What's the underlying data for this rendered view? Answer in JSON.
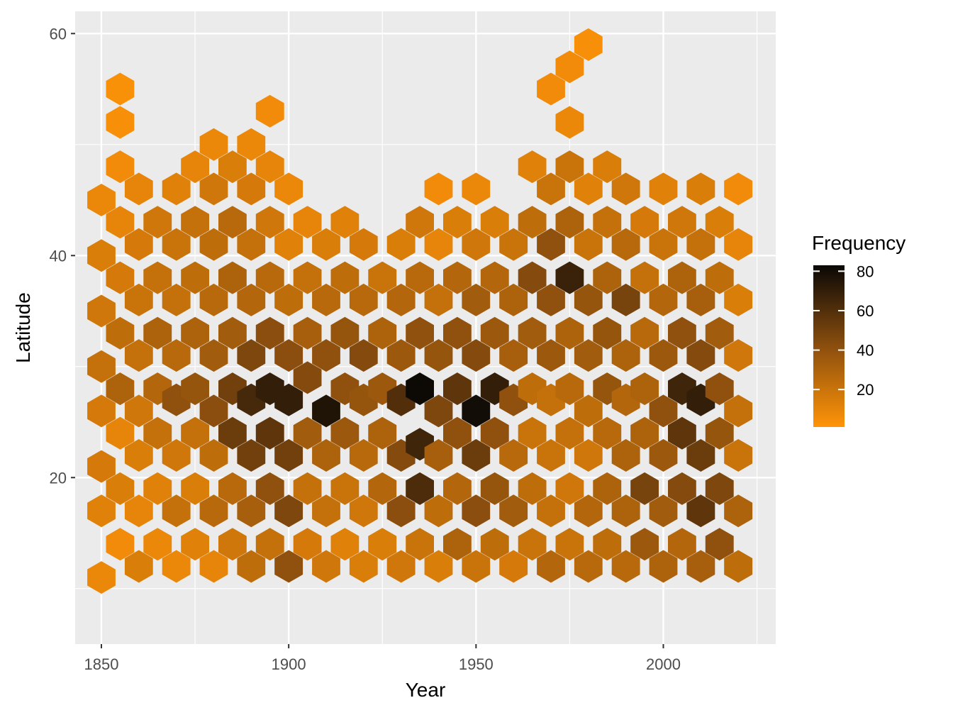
{
  "chart_data": {
    "type": "hexbin",
    "xlabel": "Year",
    "ylabel": "Latitude",
    "xlim": [
      1843,
      2030
    ],
    "ylim": [
      5,
      62
    ],
    "x_ticks": [
      1850,
      1900,
      1950,
      2000
    ],
    "y_ticks": [
      20,
      40,
      60
    ],
    "x_tick_labels": [
      "1850",
      "1900",
      "1950",
      "2000"
    ],
    "y_tick_labels": [
      "20",
      "40",
      "60"
    ],
    "grid": true,
    "legend": {
      "title": "Frequency",
      "position": "right",
      "min": 1,
      "max": 83,
      "breaks": [
        20,
        40,
        60,
        80
      ],
      "labels": [
        "20",
        "40",
        "60",
        "80"
      ],
      "color_low": "#ff9408",
      "color_mid": "#8b4e0e",
      "color_high": "#0a0806"
    },
    "bins_note": "hex bins estimated visually",
    "bins": [
      [
        1850,
        11,
        8
      ],
      [
        1850,
        17,
        12
      ],
      [
        1850,
        21,
        16
      ],
      [
        1850,
        26,
        16
      ],
      [
        1850,
        30,
        22
      ],
      [
        1850,
        35,
        18
      ],
      [
        1850,
        40,
        14
      ],
      [
        1850,
        45,
        8
      ],
      [
        1855,
        14,
        6
      ],
      [
        1855,
        19,
        14
      ],
      [
        1855,
        24,
        10
      ],
      [
        1855,
        28,
        30
      ],
      [
        1855,
        33,
        24
      ],
      [
        1855,
        38,
        16
      ],
      [
        1855,
        43,
        10
      ],
      [
        1855,
        48,
        6
      ],
      [
        1855,
        52,
        4
      ],
      [
        1855,
        55,
        3
      ],
      [
        1860,
        12,
        14
      ],
      [
        1860,
        17,
        10
      ],
      [
        1860,
        22,
        14
      ],
      [
        1860,
        26,
        18
      ],
      [
        1860,
        31,
        22
      ],
      [
        1860,
        36,
        20
      ],
      [
        1860,
        41,
        16
      ],
      [
        1860,
        46,
        10
      ],
      [
        1865,
        14,
        8
      ],
      [
        1865,
        19,
        12
      ],
      [
        1865,
        24,
        22
      ],
      [
        1865,
        28,
        28
      ],
      [
        1865,
        33,
        30
      ],
      [
        1865,
        38,
        22
      ],
      [
        1865,
        43,
        18
      ],
      [
        1870,
        12,
        8
      ],
      [
        1870,
        17,
        22
      ],
      [
        1870,
        22,
        18
      ],
      [
        1870,
        27,
        40
      ],
      [
        1870,
        31,
        26
      ],
      [
        1870,
        36,
        22
      ],
      [
        1870,
        41,
        20
      ],
      [
        1870,
        46,
        12
      ],
      [
        1875,
        14,
        12
      ],
      [
        1875,
        19,
        14
      ],
      [
        1875,
        24,
        22
      ],
      [
        1875,
        28,
        38
      ],
      [
        1875,
        33,
        30
      ],
      [
        1875,
        38,
        24
      ],
      [
        1875,
        43,
        22
      ],
      [
        1875,
        48,
        10
      ],
      [
        1880,
        12,
        10
      ],
      [
        1880,
        17,
        26
      ],
      [
        1880,
        22,
        24
      ],
      [
        1880,
        26,
        42
      ],
      [
        1880,
        31,
        34
      ],
      [
        1880,
        36,
        26
      ],
      [
        1880,
        41,
        24
      ],
      [
        1880,
        46,
        18
      ],
      [
        1880,
        50,
        8
      ],
      [
        1885,
        14,
        18
      ],
      [
        1885,
        19,
        26
      ],
      [
        1885,
        24,
        52
      ],
      [
        1885,
        28,
        50
      ],
      [
        1885,
        33,
        34
      ],
      [
        1885,
        38,
        30
      ],
      [
        1885,
        43,
        26
      ],
      [
        1885,
        48,
        14
      ],
      [
        1890,
        12,
        24
      ],
      [
        1890,
        17,
        32
      ],
      [
        1890,
        22,
        50
      ],
      [
        1890,
        27,
        64
      ],
      [
        1890,
        31,
        46
      ],
      [
        1890,
        36,
        28
      ],
      [
        1890,
        41,
        22
      ],
      [
        1890,
        46,
        16
      ],
      [
        1890,
        50,
        8
      ],
      [
        1895,
        14,
        22
      ],
      [
        1895,
        19,
        40
      ],
      [
        1895,
        24,
        56
      ],
      [
        1895,
        28,
        70
      ],
      [
        1895,
        33,
        42
      ],
      [
        1895,
        38,
        26
      ],
      [
        1895,
        43,
        18
      ],
      [
        1895,
        48,
        10
      ],
      [
        1895,
        53,
        6
      ],
      [
        1900,
        12,
        40
      ],
      [
        1900,
        17,
        46
      ],
      [
        1900,
        22,
        50
      ],
      [
        1900,
        27,
        70
      ],
      [
        1900,
        31,
        42
      ],
      [
        1900,
        36,
        24
      ],
      [
        1900,
        41,
        12
      ],
      [
        1900,
        46,
        8
      ],
      [
        1905,
        14,
        16
      ],
      [
        1905,
        19,
        22
      ],
      [
        1905,
        24,
        34
      ],
      [
        1905,
        29,
        44
      ],
      [
        1905,
        33,
        32
      ],
      [
        1905,
        38,
        22
      ],
      [
        1905,
        43,
        10
      ],
      [
        1910,
        12,
        18
      ],
      [
        1910,
        17,
        22
      ],
      [
        1910,
        22,
        30
      ],
      [
        1910,
        26,
        76
      ],
      [
        1910,
        31,
        40
      ],
      [
        1910,
        36,
        26
      ],
      [
        1910,
        41,
        14
      ],
      [
        1915,
        14,
        12
      ],
      [
        1915,
        19,
        20
      ],
      [
        1915,
        24,
        36
      ],
      [
        1915,
        28,
        40
      ],
      [
        1915,
        33,
        38
      ],
      [
        1915,
        38,
        24
      ],
      [
        1915,
        43,
        12
      ],
      [
        1920,
        12,
        14
      ],
      [
        1920,
        17,
        18
      ],
      [
        1920,
        22,
        26
      ],
      [
        1920,
        27,
        38
      ],
      [
        1920,
        31,
        44
      ],
      [
        1920,
        36,
        26
      ],
      [
        1920,
        41,
        16
      ],
      [
        1925,
        14,
        14
      ],
      [
        1925,
        19,
        28
      ],
      [
        1925,
        24,
        30
      ],
      [
        1925,
        28,
        36
      ],
      [
        1925,
        33,
        30
      ],
      [
        1925,
        38,
        20
      ],
      [
        1930,
        12,
        18
      ],
      [
        1930,
        17,
        42
      ],
      [
        1930,
        22,
        44
      ],
      [
        1930,
        27,
        60
      ],
      [
        1930,
        31,
        36
      ],
      [
        1930,
        36,
        28
      ],
      [
        1930,
        41,
        14
      ],
      [
        1935,
        14,
        20
      ],
      [
        1935,
        19,
        62
      ],
      [
        1935,
        23,
        66
      ],
      [
        1935,
        28,
        82
      ],
      [
        1935,
        33,
        40
      ],
      [
        1935,
        38,
        26
      ],
      [
        1935,
        43,
        18
      ],
      [
        1940,
        12,
        14
      ],
      [
        1940,
        17,
        24
      ],
      [
        1940,
        22,
        32
      ],
      [
        1940,
        26,
        46
      ],
      [
        1940,
        31,
        38
      ],
      [
        1940,
        36,
        22
      ],
      [
        1940,
        41,
        10
      ],
      [
        1940,
        46,
        6
      ],
      [
        1945,
        14,
        30
      ],
      [
        1945,
        19,
        28
      ],
      [
        1945,
        24,
        40
      ],
      [
        1945,
        28,
        56
      ],
      [
        1945,
        33,
        40
      ],
      [
        1945,
        38,
        28
      ],
      [
        1945,
        43,
        14
      ],
      [
        1950,
        12,
        20
      ],
      [
        1950,
        17,
        42
      ],
      [
        1950,
        22,
        52
      ],
      [
        1950,
        26,
        80
      ],
      [
        1950,
        31,
        44
      ],
      [
        1950,
        36,
        34
      ],
      [
        1950,
        41,
        18
      ],
      [
        1950,
        46,
        8
      ],
      [
        1955,
        14,
        24
      ],
      [
        1955,
        19,
        38
      ],
      [
        1955,
        24,
        40
      ],
      [
        1955,
        28,
        70
      ],
      [
        1955,
        33,
        36
      ],
      [
        1955,
        38,
        28
      ],
      [
        1955,
        43,
        14
      ],
      [
        1960,
        12,
        16
      ],
      [
        1960,
        17,
        34
      ],
      [
        1960,
        22,
        26
      ],
      [
        1960,
        27,
        40
      ],
      [
        1960,
        31,
        32
      ],
      [
        1960,
        36,
        30
      ],
      [
        1960,
        41,
        20
      ],
      [
        1965,
        14,
        20
      ],
      [
        1965,
        19,
        24
      ],
      [
        1965,
        24,
        20
      ],
      [
        1965,
        28,
        24
      ],
      [
        1965,
        33,
        34
      ],
      [
        1965,
        38,
        44
      ],
      [
        1965,
        43,
        24
      ],
      [
        1965,
        48,
        12
      ],
      [
        1970,
        12,
        28
      ],
      [
        1970,
        17,
        22
      ],
      [
        1970,
        22,
        20
      ],
      [
        1970,
        27,
        22
      ],
      [
        1970,
        31,
        36
      ],
      [
        1970,
        36,
        40
      ],
      [
        1970,
        41,
        40
      ],
      [
        1970,
        46,
        20
      ],
      [
        1970,
        55,
        6
      ],
      [
        1975,
        14,
        20
      ],
      [
        1975,
        19,
        18
      ],
      [
        1975,
        24,
        22
      ],
      [
        1975,
        28,
        26
      ],
      [
        1975,
        33,
        30
      ],
      [
        1975,
        38,
        68
      ],
      [
        1975,
        43,
        30
      ],
      [
        1975,
        48,
        20
      ],
      [
        1975,
        52,
        8
      ],
      [
        1975,
        57,
        6
      ],
      [
        1980,
        12,
        26
      ],
      [
        1980,
        17,
        28
      ],
      [
        1980,
        22,
        18
      ],
      [
        1980,
        26,
        24
      ],
      [
        1980,
        31,
        34
      ],
      [
        1980,
        36,
        38
      ],
      [
        1980,
        41,
        20
      ],
      [
        1980,
        46,
        12
      ],
      [
        1980,
        59,
        4
      ],
      [
        1985,
        14,
        24
      ],
      [
        1985,
        19,
        30
      ],
      [
        1985,
        24,
        26
      ],
      [
        1985,
        28,
        38
      ],
      [
        1985,
        33,
        38
      ],
      [
        1985,
        38,
        30
      ],
      [
        1985,
        43,
        22
      ],
      [
        1985,
        48,
        14
      ],
      [
        1990,
        12,
        26
      ],
      [
        1990,
        17,
        30
      ],
      [
        1990,
        22,
        30
      ],
      [
        1990,
        27,
        28
      ],
      [
        1990,
        31,
        30
      ],
      [
        1990,
        36,
        48
      ],
      [
        1990,
        41,
        26
      ],
      [
        1990,
        46,
        18
      ],
      [
        1995,
        14,
        36
      ],
      [
        1995,
        19,
        48
      ],
      [
        1995,
        24,
        30
      ],
      [
        1995,
        28,
        30
      ],
      [
        1995,
        33,
        26
      ],
      [
        1995,
        38,
        22
      ],
      [
        1995,
        43,
        16
      ],
      [
        2000,
        12,
        30
      ],
      [
        2000,
        17,
        34
      ],
      [
        2000,
        22,
        36
      ],
      [
        2000,
        26,
        40
      ],
      [
        2000,
        31,
        36
      ],
      [
        2000,
        36,
        28
      ],
      [
        2000,
        41,
        20
      ],
      [
        2000,
        46,
        12
      ],
      [
        2005,
        14,
        28
      ],
      [
        2005,
        19,
        44
      ],
      [
        2005,
        24,
        56
      ],
      [
        2005,
        28,
        66
      ],
      [
        2005,
        33,
        40
      ],
      [
        2005,
        38,
        30
      ],
      [
        2005,
        43,
        18
      ],
      [
        2010,
        12,
        32
      ],
      [
        2010,
        17,
        56
      ],
      [
        2010,
        22,
        52
      ],
      [
        2010,
        27,
        70
      ],
      [
        2010,
        31,
        44
      ],
      [
        2010,
        36,
        32
      ],
      [
        2010,
        41,
        22
      ],
      [
        2010,
        46,
        14
      ],
      [
        2015,
        14,
        40
      ],
      [
        2015,
        19,
        46
      ],
      [
        2015,
        24,
        38
      ],
      [
        2015,
        28,
        40
      ],
      [
        2015,
        33,
        34
      ],
      [
        2015,
        38,
        24
      ],
      [
        2015,
        43,
        14
      ],
      [
        2020,
        12,
        24
      ],
      [
        2020,
        17,
        30
      ],
      [
        2020,
        22,
        20
      ],
      [
        2020,
        26,
        22
      ],
      [
        2020,
        31,
        18
      ],
      [
        2020,
        36,
        14
      ],
      [
        2020,
        41,
        10
      ],
      [
        2020,
        46,
        6
      ]
    ]
  }
}
